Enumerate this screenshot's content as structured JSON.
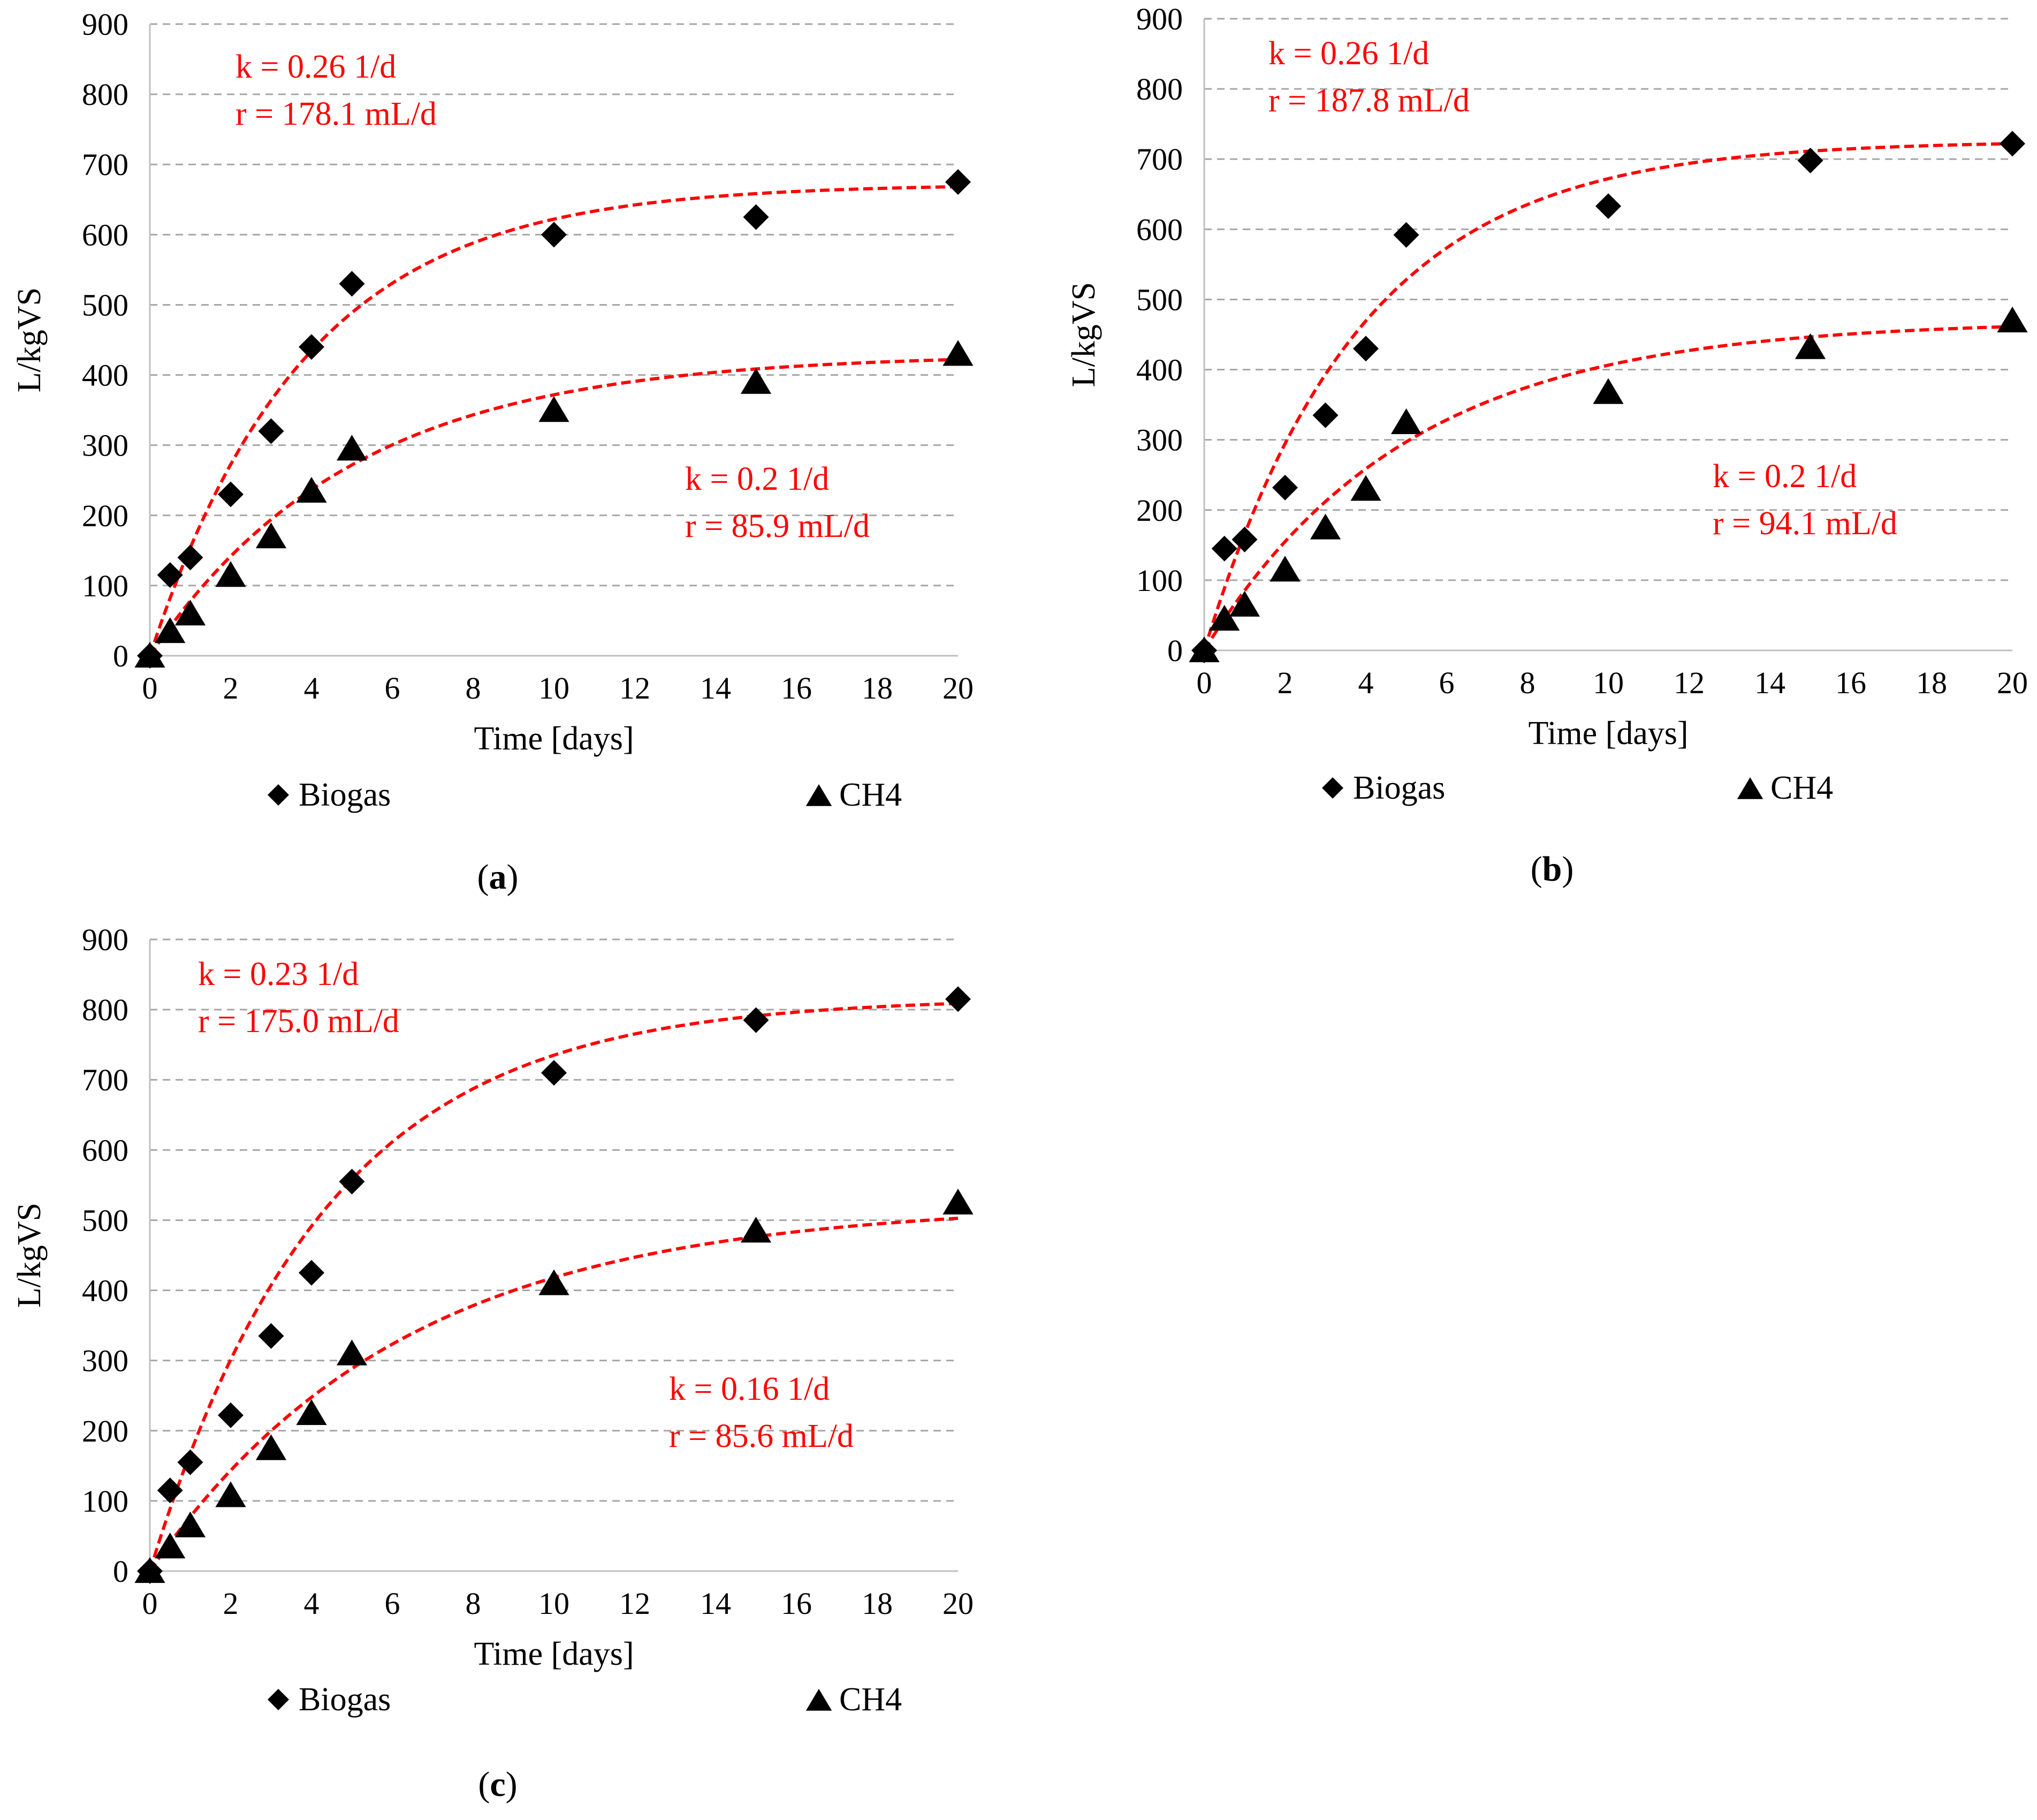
{
  "chart_data": [
    {
      "type": "scatter",
      "panel": "a",
      "caption": {
        "open": "(",
        "letter": "a",
        "close": ")"
      },
      "xlabel": "Time [days]",
      "ylabel": "L/kgVS",
      "xlim": [
        0,
        20
      ],
      "ylim": [
        0,
        900
      ],
      "xticks": [
        0,
        2,
        4,
        6,
        8,
        10,
        12,
        14,
        16,
        18,
        20
      ],
      "yticks": [
        0,
        100,
        200,
        300,
        400,
        500,
        600,
        700,
        800,
        900
      ],
      "grid": true,
      "legend": [
        "Biogas",
        "CH4"
      ],
      "series": [
        {
          "name": "Biogas",
          "marker": "diamond",
          "x": [
            0,
            0.5,
            1,
            2,
            3,
            4,
            5,
            10,
            15,
            20
          ],
          "y": [
            0,
            115,
            140,
            230,
            320,
            440,
            530,
            600,
            625,
            675
          ],
          "fit": {
            "k": 0.26,
            "ymax": 672
          },
          "annotation": [
            "k = 0.26 1/d",
            "r = 178.1 mL/d"
          ]
        },
        {
          "name": "CH4",
          "marker": "triangle",
          "x": [
            0,
            0.5,
            1,
            2,
            3,
            4,
            5,
            10,
            15,
            20
          ],
          "y": [
            0,
            35,
            60,
            115,
            170,
            235,
            295,
            350,
            390,
            430
          ],
          "fit": {
            "k": 0.2,
            "ymax": 430
          },
          "annotation": [
            "k = 0.2 1/d",
            "r = 85.9 mL/d"
          ]
        }
      ]
    },
    {
      "type": "scatter",
      "panel": "b",
      "caption": {
        "open": "(",
        "letter": "b",
        "close": ")"
      },
      "xlabel": "Time [days]",
      "ylabel": "L/kgVS",
      "xlim": [
        0,
        20
      ],
      "ylim": [
        0,
        900
      ],
      "xticks": [
        0,
        2,
        4,
        6,
        8,
        10,
        12,
        14,
        16,
        18,
        20
      ],
      "yticks": [
        0,
        100,
        200,
        300,
        400,
        500,
        600,
        700,
        800,
        900
      ],
      "grid": true,
      "legend": [
        "Biogas",
        "CH4"
      ],
      "series": [
        {
          "name": "Biogas",
          "marker": "diamond",
          "x": [
            0,
            0.5,
            1,
            2,
            3,
            4,
            5,
            10,
            15,
            20
          ],
          "y": [
            0,
            145,
            158,
            232,
            335,
            430,
            592,
            633,
            698,
            722
          ],
          "fit": {
            "k": 0.26,
            "ymax": 726
          },
          "annotation": [
            "k = 0.26 1/d",
            "r = 187.8 mL/d"
          ]
        },
        {
          "name": "CH4",
          "marker": "triangle",
          "x": [
            0,
            0.5,
            1,
            2,
            3,
            4,
            5,
            10,
            15,
            20
          ],
          "y": [
            0,
            45,
            65,
            115,
            175,
            230,
            325,
            368,
            432,
            470
          ],
          "fit": {
            "k": 0.2,
            "ymax": 470
          },
          "annotation": [
            "k = 0.2 1/d",
            "r = 94.1 mL/d"
          ]
        }
      ]
    },
    {
      "type": "scatter",
      "panel": "c",
      "caption": {
        "open": "(",
        "letter": "c",
        "close": ")"
      },
      "xlabel": "Time [days]",
      "ylabel": "L/kgVS",
      "xlim": [
        0,
        20
      ],
      "ylim": [
        0,
        900
      ],
      "xticks": [
        0,
        2,
        4,
        6,
        8,
        10,
        12,
        14,
        16,
        18,
        20
      ],
      "yticks": [
        0,
        100,
        200,
        300,
        400,
        500,
        600,
        700,
        800,
        900
      ],
      "grid": true,
      "legend": [
        "Biogas",
        "CH4"
      ],
      "series": [
        {
          "name": "Biogas",
          "marker": "diamond",
          "x": [
            0,
            0.5,
            1,
            2,
            3,
            4,
            5,
            10,
            15,
            20
          ],
          "y": [
            0,
            115,
            155,
            222,
            335,
            425,
            555,
            710,
            785,
            815
          ],
          "fit": {
            "k": 0.23,
            "ymax": 817
          },
          "annotation": [
            "k = 0.23 1/d",
            "r = 175.0 mL/d"
          ]
        },
        {
          "name": "CH4",
          "marker": "triangle",
          "x": [
            0,
            0.5,
            1,
            2,
            3,
            4,
            5,
            10,
            15,
            20
          ],
          "y": [
            0,
            35,
            65,
            108,
            175,
            225,
            310,
            410,
            485,
            525
          ],
          "fit": {
            "k": 0.16,
            "ymax": 524
          },
          "annotation": [
            "k = 0.16 1/d",
            "r = 85.6 mL/d"
          ]
        }
      ]
    }
  ],
  "colors": {
    "fit": "#ff0000",
    "marker": "#000000",
    "grid": "#a6a6a6",
    "axis": "#bfbfbf"
  }
}
